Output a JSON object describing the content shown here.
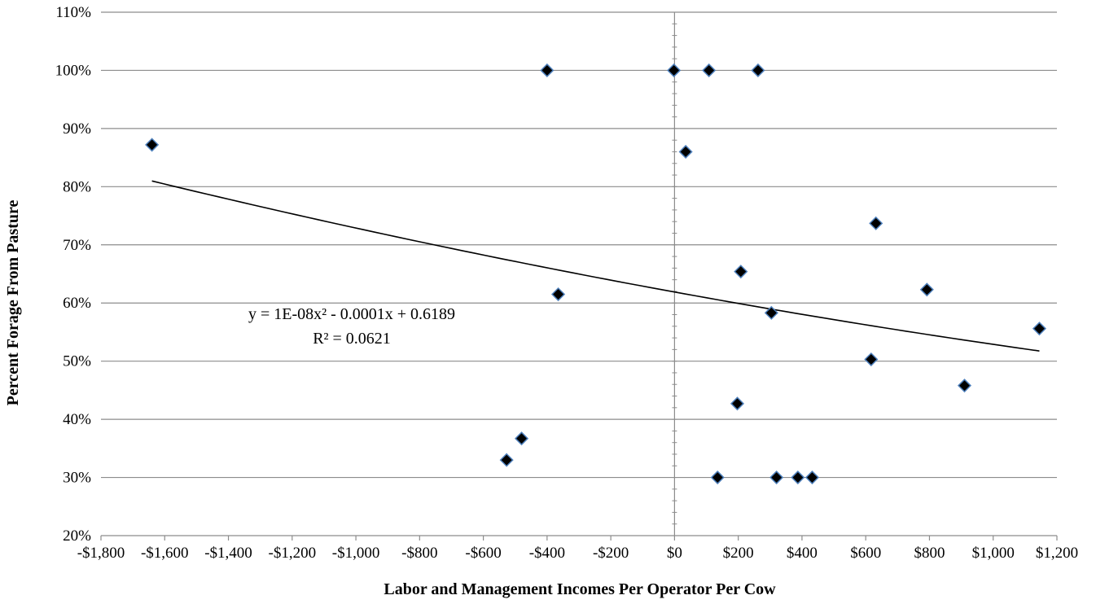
{
  "chart_data": {
    "type": "scatter",
    "xlabel": "Labor and Management Incomes Per Operator Per Cow",
    "ylabel": "Percent Forage From Pasture",
    "xlim": [
      -1800,
      1200
    ],
    "ylim": [
      0.2,
      1.1
    ],
    "x_ticks": [
      -1800,
      -1600,
      -1400,
      -1200,
      -1000,
      -800,
      -600,
      -400,
      -200,
      0,
      200,
      400,
      600,
      800,
      1000,
      1200
    ],
    "x_tick_labels": [
      "-$1,800",
      "-$1,600",
      "-$1,400",
      "-$1,200",
      "-$1,000",
      "-$800",
      "-$600",
      "-$400",
      "-$200",
      "$0",
      "$200",
      "$400",
      "$600",
      "$800",
      "$1,000",
      "$1,200"
    ],
    "y_ticks": [
      0.2,
      0.3,
      0.4,
      0.5,
      0.6,
      0.7,
      0.8,
      0.9,
      1.0,
      1.1
    ],
    "y_tick_labels": [
      "20%",
      "30%",
      "40%",
      "50%",
      "60%",
      "70%",
      "80%",
      "90%",
      "100%",
      "110%"
    ],
    "grid": "horizontal",
    "marker_color": "#000000",
    "marker_edge_color": "#4f81bd",
    "points": [
      {
        "x": -1640,
        "y": 0.872
      },
      {
        "x": -400,
        "y": 1.0
      },
      {
        "x": -2,
        "y": 1.0
      },
      {
        "x": 108,
        "y": 1.0
      },
      {
        "x": 262,
        "y": 1.0
      },
      {
        "x": 35,
        "y": 0.86
      },
      {
        "x": -365,
        "y": 0.615
      },
      {
        "x": -527,
        "y": 0.33
      },
      {
        "x": -480,
        "y": 0.367
      },
      {
        "x": 208,
        "y": 0.654
      },
      {
        "x": 197,
        "y": 0.427
      },
      {
        "x": 304,
        "y": 0.583
      },
      {
        "x": 135,
        "y": 0.3
      },
      {
        "x": 320,
        "y": 0.3
      },
      {
        "x": 387,
        "y": 0.3
      },
      {
        "x": 432,
        "y": 0.3
      },
      {
        "x": 632,
        "y": 0.737
      },
      {
        "x": 617,
        "y": 0.503
      },
      {
        "x": 792,
        "y": 0.623
      },
      {
        "x": 910,
        "y": 0.458
      },
      {
        "x": 1145,
        "y": 0.556
      }
    ],
    "trendline": {
      "type": "polynomial",
      "coefficients": [
        1e-08,
        -0.0001,
        0.6189
      ],
      "x_range": [
        -1640,
        1145
      ],
      "color": "#000000",
      "equation_text": "y = 1E-08x² - 0.0001x + 0.6189",
      "r2_text": "R² = 0.0621"
    }
  }
}
